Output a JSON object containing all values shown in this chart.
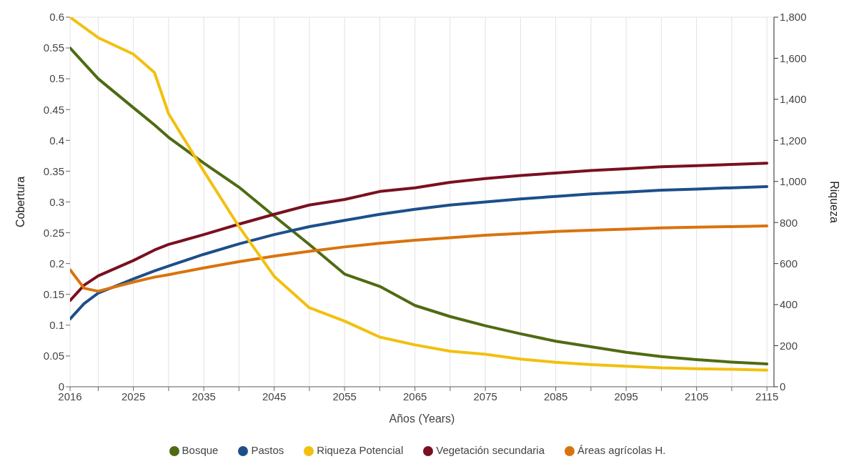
{
  "chart_data": {
    "type": "line",
    "xlabel": "Años (Years)",
    "ylabel": "Cobertura",
    "y2label": "Riqueza",
    "x": [
      2016,
      2018,
      2020,
      2025,
      2028,
      2030,
      2035,
      2040,
      2045,
      2050,
      2055,
      2060,
      2065,
      2070,
      2075,
      2080,
      2085,
      2090,
      2095,
      2100,
      2105,
      2110,
      2115
    ],
    "series": [
      {
        "name": "Bosque",
        "color": "#4f6b12",
        "values": [
          0.55,
          0.525,
          0.5,
          0.453,
          0.425,
          0.405,
          0.363,
          0.324,
          0.277,
          0.231,
          0.183,
          0.163,
          0.132,
          0.114,
          0.099,
          0.086,
          0.074,
          0.065,
          0.056,
          0.049,
          0.044,
          0.04,
          0.037
        ]
      },
      {
        "name": "Pastos",
        "color": "#1c4f8a",
        "values": [
          0.11,
          0.135,
          0.152,
          0.175,
          0.188,
          0.196,
          0.215,
          0.232,
          0.247,
          0.26,
          0.27,
          0.28,
          0.288,
          0.295,
          0.3,
          0.305,
          0.309,
          0.313,
          0.316,
          0.319,
          0.321,
          0.323,
          0.325
        ]
      },
      {
        "name": "Vegetación secundaria",
        "color": "#7a1020",
        "values": [
          0.14,
          0.165,
          0.18,
          0.205,
          0.222,
          0.231,
          0.247,
          0.264,
          0.28,
          0.295,
          0.304,
          0.317,
          0.323,
          0.332,
          0.338,
          0.343,
          0.347,
          0.351,
          0.354,
          0.357,
          0.359,
          0.361,
          0.363
        ]
      },
      {
        "name": "Áreas agrícolas H.",
        "color": "#d9730d",
        "values": [
          0.19,
          0.16,
          0.155,
          0.17,
          0.178,
          0.182,
          0.193,
          0.203,
          0.212,
          0.22,
          0.227,
          0.233,
          0.238,
          0.242,
          0.246,
          0.249,
          0.252,
          0.254,
          0.256,
          0.258,
          0.259,
          0.26,
          0.261
        ]
      },
      {
        "name": "Riqueza Potencial",
        "color": "#f2c00f",
        "axis": "y2",
        "values": [
          1800,
          1750,
          1700,
          1620,
          1530,
          1330,
          1050,
          780,
          538,
          385,
          320,
          242,
          204,
          173,
          158,
          135,
          119,
          108,
          100,
          92,
          88,
          85,
          81
        ]
      }
    ],
    "xlim": [
      2016,
      2116
    ],
    "xticks": [
      2016,
      {
        "value": 2020,
        "label": null
      },
      2025,
      {
        "value": 2030,
        "label": null
      },
      2035,
      {
        "value": 2040,
        "label": null
      },
      2045,
      {
        "value": 2050,
        "label": null
      },
      2055,
      {
        "value": 2060,
        "label": null
      },
      2065,
      {
        "value": 2070,
        "label": null
      },
      2075,
      {
        "value": 2080,
        "label": null
      },
      2085,
      {
        "value": 2090,
        "label": null
      },
      2095,
      {
        "value": 2100,
        "label": null
      },
      2105,
      {
        "value": 2110,
        "label": null
      },
      2115
    ],
    "ylim": [
      0,
      0.6
    ],
    "yticks": [
      0,
      0.05,
      0.1,
      0.15,
      0.2,
      0.25,
      0.3,
      0.35,
      0.4,
      0.45,
      0.5,
      0.55,
      0.6
    ],
    "y2lim": [
      0,
      1800
    ],
    "y2ticks": [
      0,
      {
        "value": 200,
        "label": "200"
      },
      {
        "value": 400,
        "label": "400"
      },
      {
        "value": 600,
        "label": "600"
      },
      {
        "value": 800,
        "label": "800"
      },
      {
        "value": 1000,
        "label": "1,000"
      },
      {
        "value": 1200,
        "label": "1,200"
      },
      {
        "value": 1400,
        "label": "1,400"
      },
      {
        "value": 1600,
        "label": "1,600"
      },
      {
        "value": 1800,
        "label": "1,800"
      }
    ],
    "grid": true,
    "legend": "bottom"
  }
}
